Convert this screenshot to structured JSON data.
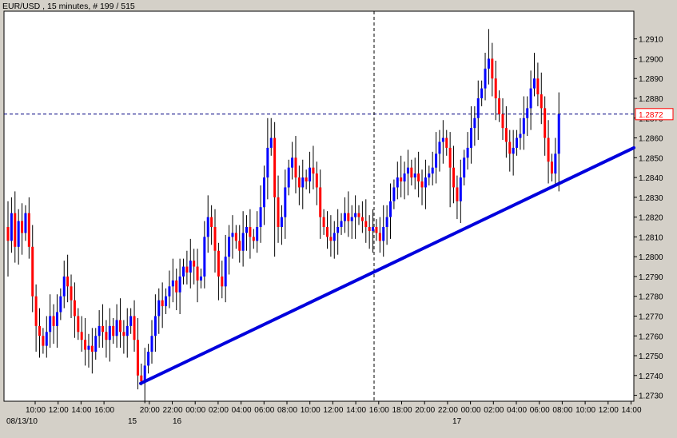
{
  "header": {
    "symbol": "EUR/USD",
    "timeframe": "15 minutes",
    "bar_info": "# 199 / 515"
  },
  "colors": {
    "up": "#0000ff",
    "down": "#ff0000",
    "wick": "#000000",
    "trendline": "#0000dd",
    "price_marker": "#ff0000",
    "plot_bg": "#ffffff",
    "frame_bg": "#d4d0c8"
  },
  "current_price_label": "1.2872",
  "chart_data": {
    "type": "candlestick",
    "title": "EUR/USD , 15 minutes, # 199 / 515",
    "ylim": [
      1.2727,
      1.2924
    ],
    "y_ticks": [
      "1.2730",
      "1.2740",
      "1.2750",
      "1.2760",
      "1.2770",
      "1.2780",
      "1.2790",
      "1.2800",
      "1.2810",
      "1.2820",
      "1.2830",
      "1.2840",
      "1.2850",
      "1.2860",
      "1.2870",
      "1.2880",
      "1.2890",
      "1.2900",
      "1.2910"
    ],
    "x_tick_labels": [
      "10:00",
      "12:00",
      "14:00",
      "16:00",
      "20:00",
      "22:00",
      "00:00",
      "02:00",
      "04:00",
      "06:00",
      "08:00",
      "10:00",
      "12:00",
      "14:00",
      "16:00",
      "18:00",
      "20:00",
      "22:00",
      "00:00",
      "02:00",
      "04:00",
      "06:00",
      "08:00",
      "10:00",
      "12:00",
      "14:00"
    ],
    "date_labels": [
      "08/13/10",
      "15",
      "16",
      "17"
    ],
    "current_price": 1.2872,
    "crosshair_price": 1.2872,
    "trendline": {
      "start": 1.2736,
      "end": 1.2855
    },
    "grid": false,
    "series": [
      {
        "values": []
      }
    ]
  }
}
